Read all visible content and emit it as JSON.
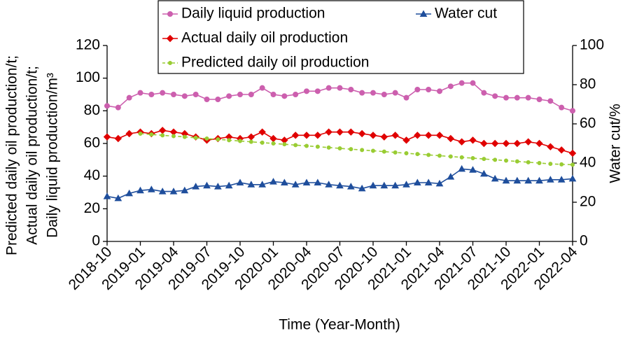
{
  "chart_data": {
    "type": "line",
    "xlabel": "Time (Year-Month)",
    "ylabel": [
      "Predicted daily oil production/t;",
      "Actual daily oil production/t;",
      "Daily liquid production/m³"
    ],
    "y2label": "Water cut/%",
    "categories": [
      "2018-10",
      null,
      null,
      "2019-01",
      null,
      null,
      "2019-04",
      null,
      null,
      "2019-07",
      null,
      null,
      "2019-10",
      null,
      null,
      "2020-01",
      null,
      null,
      "2020-04",
      null,
      null,
      "2020-07",
      null,
      null,
      "2020-10",
      null,
      null,
      "2021-01",
      null,
      null,
      "2021-04",
      null,
      null,
      "2021-07",
      null,
      null,
      "2021-10",
      null,
      null,
      "2022-01",
      null,
      null,
      "2022-04"
    ],
    "ylim": [
      0,
      120
    ],
    "yticks": [
      0,
      20,
      40,
      60,
      80,
      100,
      120
    ],
    "y2lim": [
      0,
      100
    ],
    "y2ticks": [
      0,
      20,
      40,
      60,
      80,
      100
    ],
    "legend": "top",
    "series": [
      {
        "name": "Daily liquid production",
        "color": "#cc5fae",
        "marker": "circle",
        "values": [
          83,
          82,
          88,
          91,
          90,
          91,
          90,
          89,
          90,
          87,
          87,
          89,
          90,
          90,
          94,
          90,
          89,
          90,
          92,
          92,
          94,
          94,
          93,
          91,
          91,
          90,
          91,
          88,
          93,
          93,
          92,
          95,
          97,
          97,
          91,
          89,
          88,
          88,
          88,
          87,
          86,
          82,
          80
        ]
      },
      {
        "name": "Water cut",
        "color": "#1f4e9c",
        "marker": "triangle",
        "axis": "y2",
        "values": [
          23,
          22,
          24.5,
          26,
          26.5,
          25.5,
          25.5,
          26,
          28,
          28.5,
          28,
          28.5,
          30,
          29,
          29,
          30.5,
          30,
          29,
          30,
          30,
          29,
          28.5,
          28,
          27,
          28.5,
          28.5,
          28.5,
          29,
          30,
          30,
          29.5,
          33,
          37,
          36.5,
          34.5,
          32,
          31,
          31,
          31,
          31,
          31.5,
          31.5,
          32
        ]
      },
      {
        "name": "Actual daily oil production",
        "color": "#e00000",
        "marker": "diamond",
        "values": [
          64,
          63,
          66,
          67,
          66,
          68,
          67,
          66,
          64,
          62,
          63,
          64,
          63,
          64,
          67,
          63,
          62,
          65,
          65,
          65,
          67,
          67,
          67,
          66,
          65,
          64,
          65,
          62,
          65,
          65,
          65,
          63,
          61,
          62,
          60,
          60,
          60,
          60,
          61,
          60,
          58,
          56,
          54
        ]
      },
      {
        "name": "Predicted daily oil production",
        "color": "#99cc33",
        "marker": "dot",
        "dashed": true,
        "values": [
          null,
          null,
          null,
          66,
          65.5,
          65,
          64.5,
          64,
          63.5,
          63,
          62.5,
          62,
          61.5,
          61,
          60.5,
          60,
          59.5,
          59,
          58.5,
          58,
          57.5,
          57,
          56.5,
          56,
          55.5,
          55,
          54.5,
          54,
          53.5,
          53,
          52.5,
          52,
          51.5,
          51,
          50.5,
          50,
          49.5,
          49,
          48.5,
          48,
          47.5,
          47.2,
          47
        ]
      }
    ]
  }
}
